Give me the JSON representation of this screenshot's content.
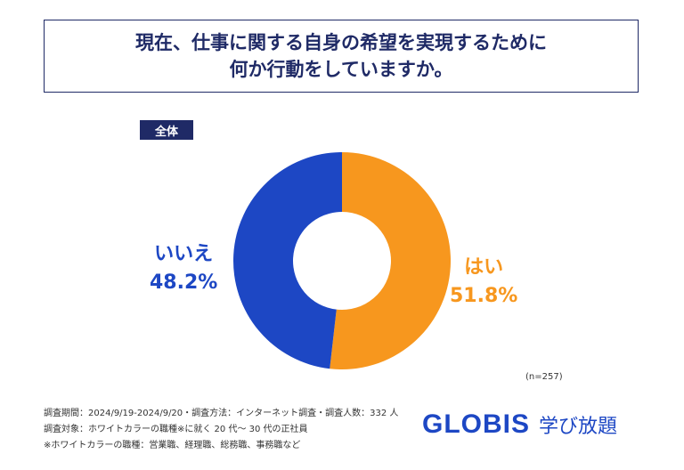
{
  "title": {
    "line1": "現在、仕事に関する自身の希望を実現するために",
    "line2": "何か行動をしていますか。"
  },
  "badge": "全体",
  "chart_data": {
    "type": "pie",
    "donut": true,
    "categories": [
      "はい",
      "いいえ"
    ],
    "values": [
      51.8,
      48.2
    ],
    "labels": [
      "51.8%",
      "48.2%"
    ],
    "colors": [
      "#F7971E",
      "#1D47C4"
    ],
    "start": "top",
    "direction": "clockwise"
  },
  "sample": "(n=257)",
  "footer": [
    "調査期間：2024/9/19-2024/9/20・調査方法：インターネット調査・調査人数：332 人",
    "調査対象：ホワイトカラーの職種※に就く 20 代～ 30 代の正社員",
    "※ホワイトカラーの職種：営業職、経理職、総務職、事務職など"
  ],
  "logo": {
    "brand": "GLOBIS",
    "service": "学び放題"
  }
}
